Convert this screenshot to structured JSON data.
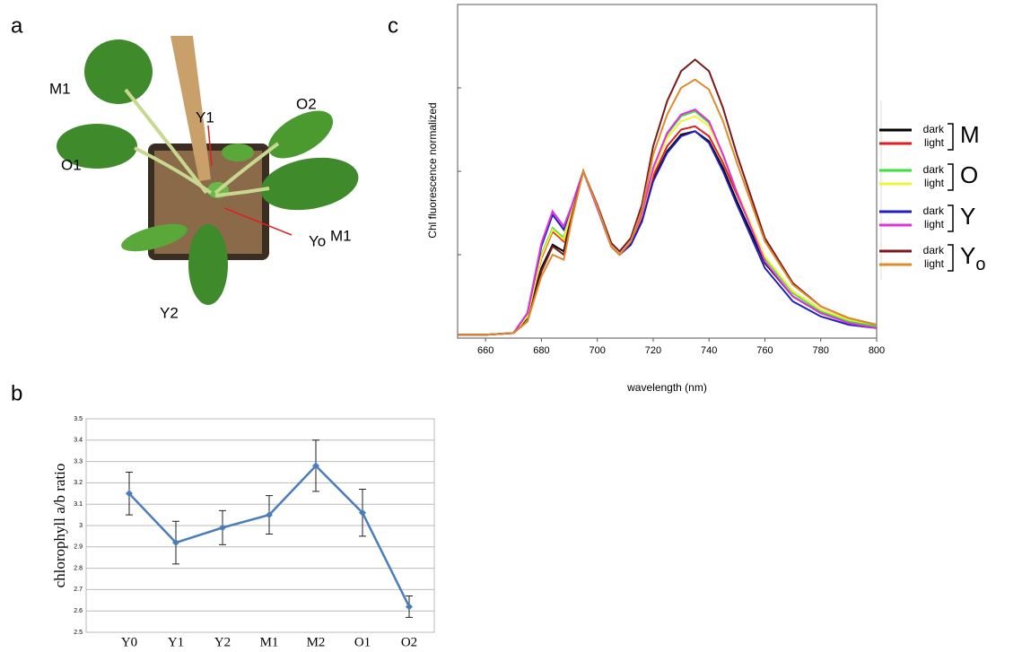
{
  "panel_labels": [
    "a",
    "b",
    "c"
  ],
  "photo_labels": [
    "M1",
    "Y1",
    "O2",
    "O1",
    "M1",
    "Yo",
    "Y2"
  ],
  "chart_data": [
    {
      "type": "line",
      "y_label": "chlorophyll a/b ratio",
      "categories": [
        "Y0",
        "Y1",
        "Y2",
        "M1",
        "M2",
        "O1",
        "O2"
      ],
      "values": [
        3.15,
        2.92,
        2.99,
        3.05,
        3.28,
        3.06,
        2.62
      ],
      "errors": [
        0.1,
        0.1,
        0.08,
        0.09,
        0.12,
        0.11,
        0.05
      ],
      "color": "#4a7ebb",
      "ylim": [
        2.5,
        3.5
      ],
      "yticks": [
        2.5,
        2.6,
        2.7,
        2.8,
        2.9,
        3,
        3.1,
        3.2,
        3.3,
        3.4,
        3.5
      ],
      "grid": true
    },
    {
      "type": "line",
      "x_label": "wavelength (nm)",
      "y_label": "Chl fluorescence normalized",
      "x": [
        650,
        660,
        670,
        675,
        680,
        684,
        688,
        691,
        695,
        700,
        705,
        708,
        712,
        716,
        720,
        725,
        730,
        735,
        740,
        745,
        750,
        760,
        770,
        780,
        790,
        800
      ],
      "xlim": [
        650,
        800
      ],
      "xticks": [
        660,
        680,
        700,
        720,
        740,
        760,
        780,
        800
      ],
      "ylim": [
        0,
        2
      ],
      "yticks": [
        0.5,
        1,
        1.5
      ],
      "grid": false,
      "legend_groups": [
        {
          "text": "M"
        },
        {
          "text": "O"
        },
        {
          "text": "Y"
        },
        {
          "text": "Y",
          "sub": "o"
        }
      ],
      "series": [
        {
          "name": "dark",
          "color": "#000000",
          "values": [
            0.02,
            0.02,
            0.03,
            0.12,
            0.42,
            0.56,
            0.52,
            0.75,
            1.0,
            0.78,
            0.55,
            0.5,
            0.56,
            0.7,
            0.95,
            1.12,
            1.22,
            1.24,
            1.18,
            1.02,
            0.82,
            0.45,
            0.25,
            0.15,
            0.1,
            0.07
          ]
        },
        {
          "name": "light",
          "color": "#e0201b",
          "values": [
            0.02,
            0.02,
            0.03,
            0.13,
            0.48,
            0.64,
            0.58,
            0.78,
            1.0,
            0.78,
            0.55,
            0.5,
            0.57,
            0.72,
            0.97,
            1.15,
            1.25,
            1.27,
            1.21,
            1.05,
            0.86,
            0.48,
            0.28,
            0.17,
            0.11,
            0.08
          ]
        },
        {
          "name": "dark",
          "color": "#3ee03e",
          "values": [
            0.02,
            0.02,
            0.03,
            0.13,
            0.5,
            0.66,
            0.6,
            0.78,
            1.0,
            0.78,
            0.55,
            0.5,
            0.58,
            0.75,
            1.02,
            1.22,
            1.33,
            1.36,
            1.29,
            1.1,
            0.88,
            0.48,
            0.27,
            0.16,
            0.1,
            0.07
          ]
        },
        {
          "name": "light",
          "color": "#f2f23a",
          "values": [
            0.02,
            0.02,
            0.03,
            0.13,
            0.49,
            0.65,
            0.59,
            0.78,
            1.0,
            0.78,
            0.55,
            0.5,
            0.58,
            0.74,
            1.0,
            1.2,
            1.3,
            1.33,
            1.27,
            1.09,
            0.88,
            0.49,
            0.28,
            0.17,
            0.11,
            0.08
          ]
        },
        {
          "name": "dark",
          "color": "#2020c0",
          "values": [
            0.02,
            0.02,
            0.03,
            0.15,
            0.55,
            0.74,
            0.65,
            0.8,
            1.0,
            0.78,
            0.55,
            0.5,
            0.56,
            0.7,
            0.94,
            1.11,
            1.21,
            1.24,
            1.17,
            1.0,
            0.8,
            0.42,
            0.22,
            0.13,
            0.08,
            0.06
          ]
        },
        {
          "name": "light",
          "color": "#e030e0",
          "values": [
            0.02,
            0.02,
            0.03,
            0.15,
            0.57,
            0.76,
            0.67,
            0.8,
            1.0,
            0.78,
            0.55,
            0.5,
            0.58,
            0.75,
            1.02,
            1.23,
            1.34,
            1.37,
            1.3,
            1.1,
            0.87,
            0.46,
            0.25,
            0.15,
            0.09,
            0.06
          ]
        },
        {
          "name": "dark",
          "color": "#7a1a1a",
          "values": [
            0.02,
            0.02,
            0.03,
            0.1,
            0.4,
            0.55,
            0.5,
            0.74,
            1.0,
            0.8,
            0.57,
            0.52,
            0.6,
            0.8,
            1.15,
            1.42,
            1.6,
            1.67,
            1.6,
            1.38,
            1.1,
            0.6,
            0.33,
            0.19,
            0.12,
            0.08
          ]
        },
        {
          "name": "light",
          "color": "#e08a2a",
          "values": [
            0.02,
            0.02,
            0.03,
            0.1,
            0.37,
            0.5,
            0.47,
            0.72,
            1.0,
            0.79,
            0.55,
            0.5,
            0.58,
            0.77,
            1.1,
            1.34,
            1.5,
            1.55,
            1.49,
            1.3,
            1.05,
            0.58,
            0.32,
            0.19,
            0.12,
            0.08
          ]
        }
      ]
    }
  ]
}
